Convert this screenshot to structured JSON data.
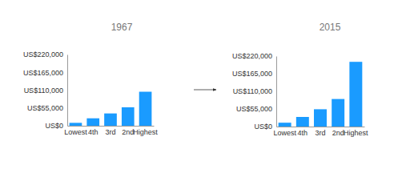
{
  "chart_data": [
    {
      "type": "bar",
      "title": "1967",
      "categories": [
        "Lowest",
        "4th",
        "3rd",
        "2nd",
        "Highest"
      ],
      "values": [
        9000,
        23000,
        38000,
        57000,
        105000
      ],
      "color": "#1a9bff",
      "ylim": [
        0,
        220000
      ],
      "yticks": [
        {
          "value": 0,
          "label": "US$0"
        },
        {
          "value": 55000,
          "label": "US$55,000"
        },
        {
          "value": 110000,
          "label": "US$110,000"
        },
        {
          "value": 165000,
          "label": "US$165,000"
        },
        {
          "value": 220000,
          "label": "US$220,000"
        }
      ]
    },
    {
      "type": "bar",
      "title": "2015",
      "categories": [
        "Lowest",
        "4th",
        "3rd",
        "2nd",
        "Highest"
      ],
      "values": [
        12000,
        30000,
        54000,
        86000,
        202000
      ],
      "color": "#1a9bff",
      "ylim": [
        0,
        220000
      ],
      "yticks": [
        {
          "value": 0,
          "label": "US$0"
        },
        {
          "value": 55000,
          "label": "US$55,000"
        },
        {
          "value": 110000,
          "label": "US$110,000"
        },
        {
          "value": 165000,
          "label": "US$165,000"
        },
        {
          "value": 220000,
          "label": "US$220,000"
        }
      ]
    }
  ]
}
